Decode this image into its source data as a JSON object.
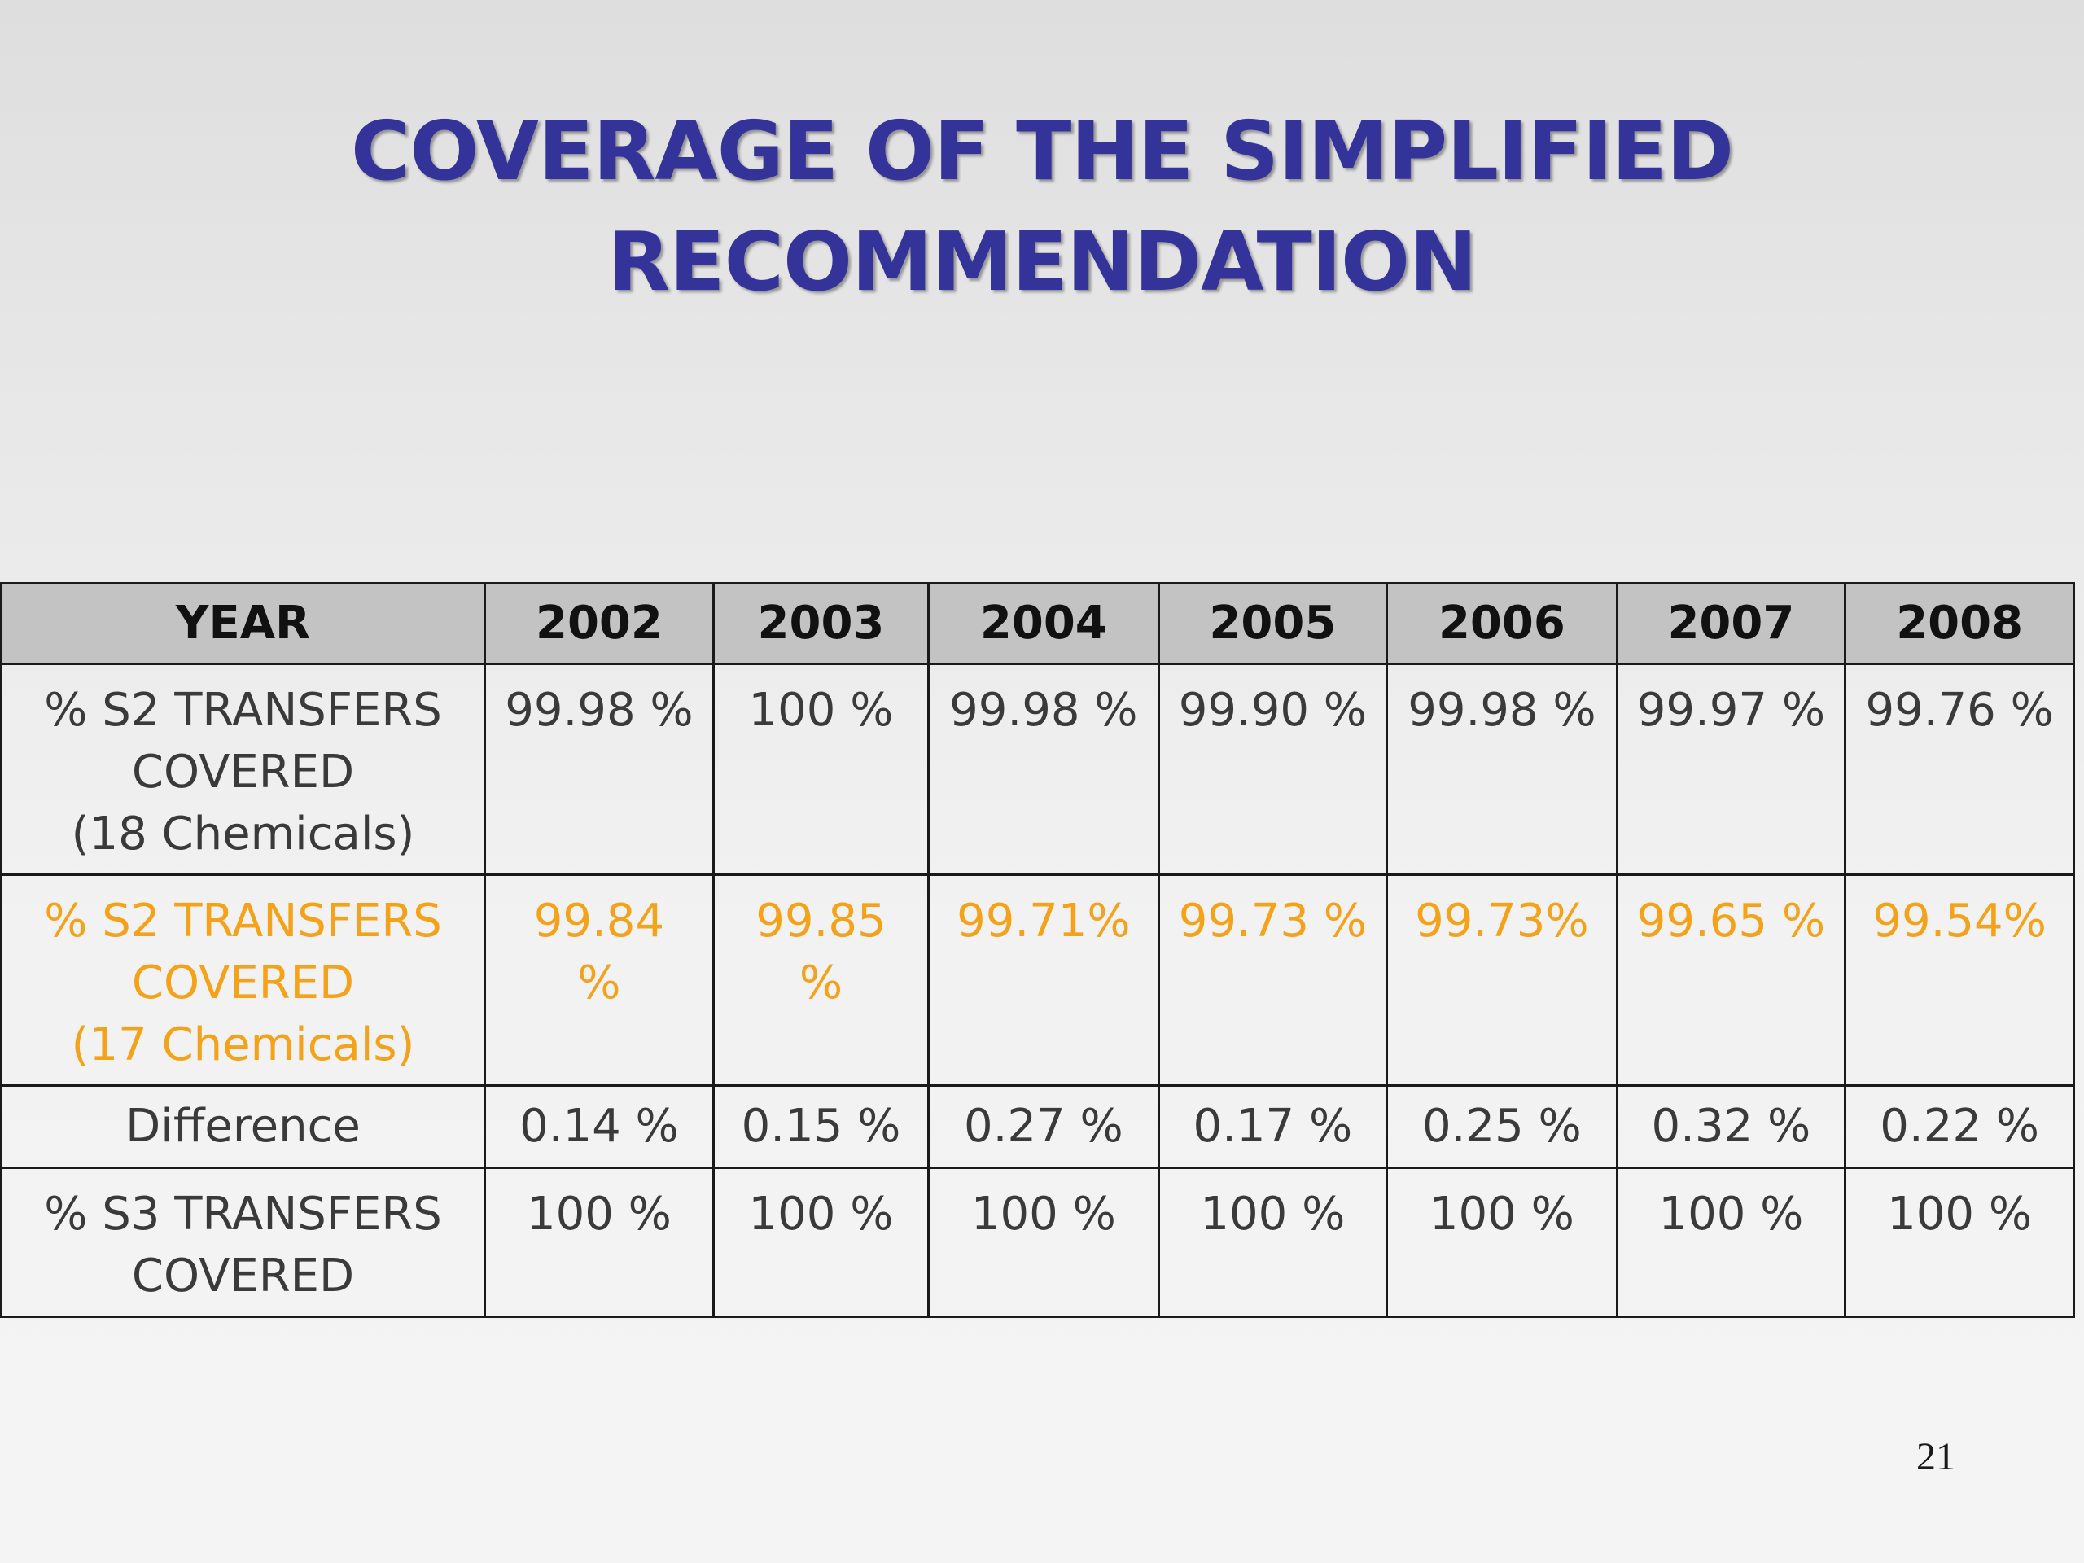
{
  "slide": {
    "title_line1": "COVERAGE OF THE SIMPLIFIED",
    "title_line2": "RECOMMENDATION",
    "page_number": "21"
  },
  "table": {
    "header": [
      "YEAR",
      "2002",
      "2003",
      "2004",
      "2005",
      "2006",
      "2007",
      "2008"
    ],
    "rows": [
      {
        "label": "% S2 TRANSFERS\n      COVERED\n(18 Chemicals)",
        "values": [
          "99.98 %",
          "100 %",
          "99.98 %",
          "99.90 %",
          "99.98 %",
          "99.97 %",
          "99.76 %"
        ]
      },
      {
        "label": "% S2 TRANSFERS\n      COVERED\n(17 Chemicals)",
        "values": [
          "99.84\n%",
          "99.85\n%",
          "99.71%",
          "99.73 %",
          "99.73%",
          "99.65 %",
          "99.54%"
        ]
      },
      {
        "label": "Difference",
        "values": [
          "0.14 %",
          "0.15 %",
          "0.27 %",
          "0.17 %",
          "0.25 %",
          "0.32 %",
          "0.22 %"
        ]
      },
      {
        "label": "% S3 TRANSFERS\n      COVERED",
        "values": [
          "100 %",
          "100 %",
          "100 %",
          "100 %",
          "100 %",
          "100 %",
          "100 %"
        ]
      }
    ]
  },
  "colors": {
    "title": "#333399",
    "highlight_row": "#f5a21b",
    "header_bg": "#c3c3c3",
    "text": "#3a3a3a"
  }
}
